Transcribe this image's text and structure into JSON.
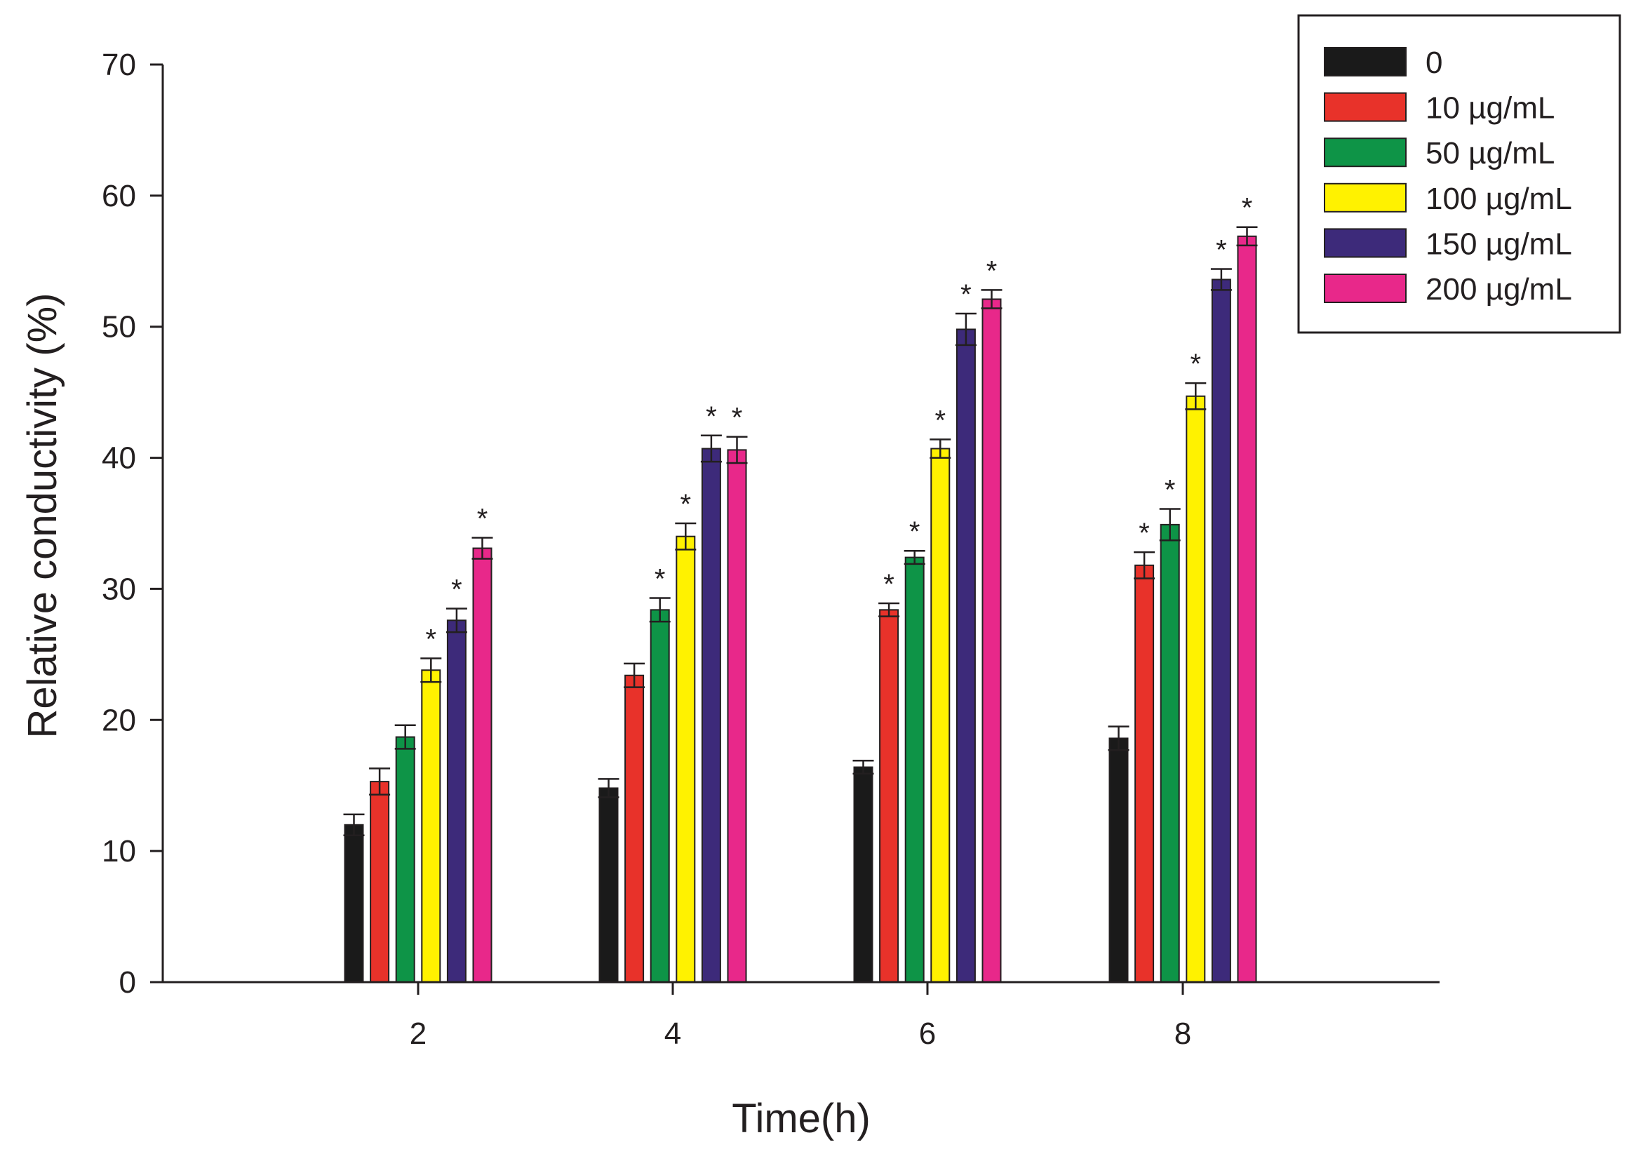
{
  "chart_data": {
    "type": "bar",
    "title": "",
    "xlabel": "Time(h)",
    "ylabel": "Relative conductivity (%)",
    "categories": [
      "2",
      "4",
      "6",
      "8"
    ],
    "ylim": [
      0,
      70
    ],
    "yticks": [
      "0",
      "10",
      "20",
      "30",
      "40",
      "50",
      "60",
      "70"
    ],
    "grid": false,
    "legend_position": "top-right",
    "significance_marker": "*",
    "series": [
      {
        "name": "0",
        "color": "#1a1a1a",
        "values": [
          12.0,
          14.8,
          16.4,
          18.6
        ],
        "errors": [
          0.8,
          0.7,
          0.5,
          0.9
        ],
        "significant": [
          false,
          false,
          false,
          false
        ]
      },
      {
        "name": "10 µg/mL",
        "color": "#e8322a",
        "values": [
          15.3,
          23.4,
          28.4,
          31.8
        ],
        "errors": [
          1.0,
          0.9,
          0.5,
          1.0
        ],
        "significant": [
          false,
          false,
          true,
          true
        ]
      },
      {
        "name": "50 µg/mL",
        "color": "#0e9447",
        "values": [
          18.7,
          28.4,
          32.4,
          34.9
        ],
        "errors": [
          0.9,
          0.9,
          0.5,
          1.2
        ],
        "significant": [
          false,
          true,
          true,
          true
        ]
      },
      {
        "name": "100 µg/mL",
        "color": "#fff200",
        "values": [
          23.8,
          34.0,
          40.7,
          44.7
        ],
        "errors": [
          0.9,
          1.0,
          0.7,
          1.0
        ],
        "significant": [
          true,
          true,
          true,
          true
        ]
      },
      {
        "name": "150 µg/mL",
        "color": "#3d2a7a",
        "values": [
          27.6,
          40.7,
          49.8,
          53.6
        ],
        "errors": [
          0.9,
          1.0,
          1.2,
          0.8
        ],
        "significant": [
          true,
          true,
          true,
          true
        ]
      },
      {
        "name": "200 µg/mL",
        "color": "#e8288a",
        "values": [
          33.1,
          40.6,
          52.1,
          56.9
        ],
        "errors": [
          0.8,
          1.0,
          0.7,
          0.7
        ],
        "significant": [
          true,
          true,
          true,
          true
        ]
      }
    ]
  }
}
